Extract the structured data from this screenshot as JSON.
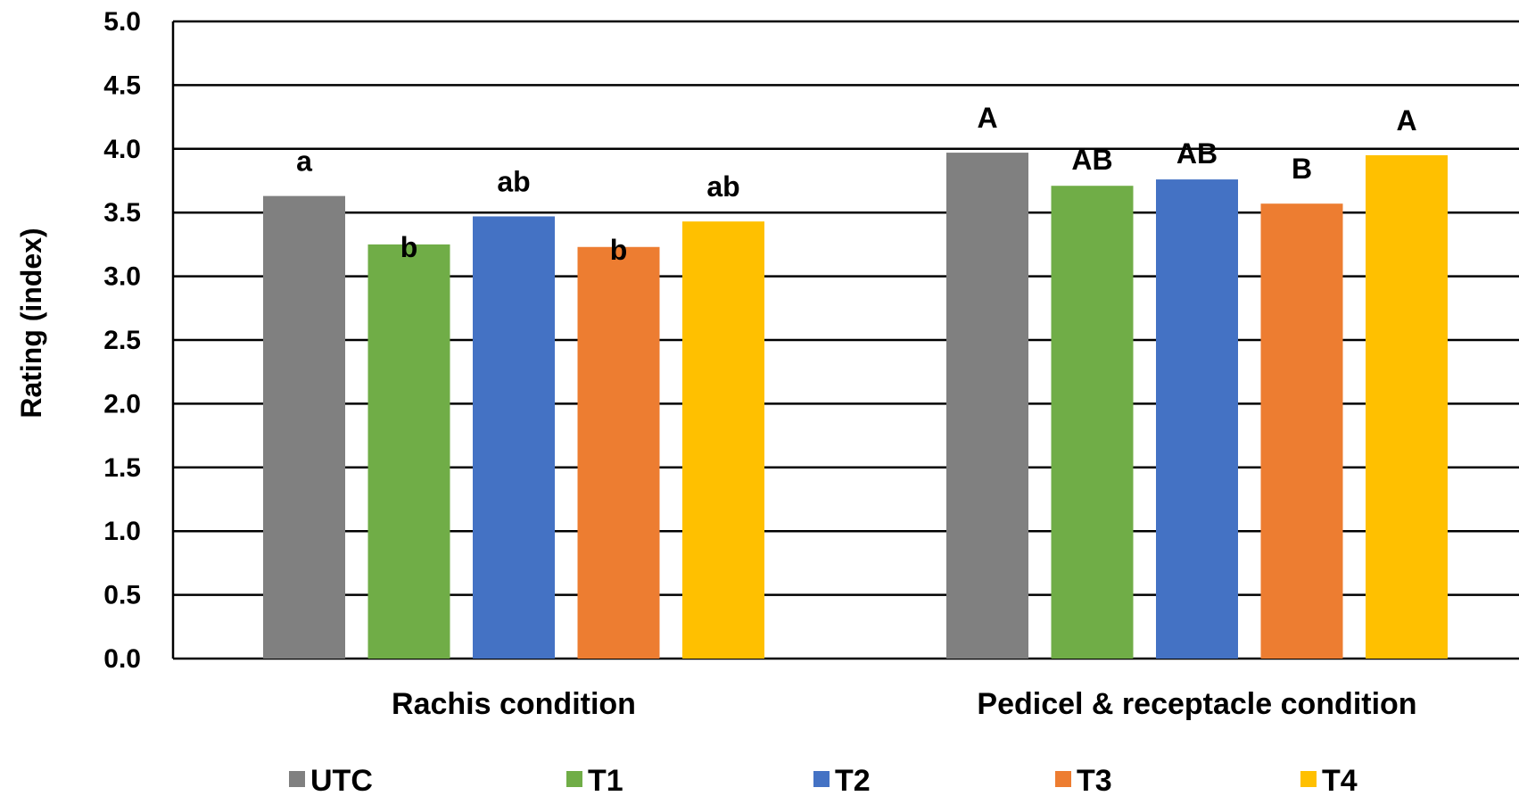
{
  "chart_data": {
    "type": "bar",
    "title": "",
    "xlabel": "",
    "ylabel": "Rating (index)",
    "ylim": [
      0,
      5
    ],
    "yticks": [
      "0.0",
      "0.5",
      "1.0",
      "1.5",
      "2.0",
      "2.5",
      "3.0",
      "3.5",
      "4.0",
      "4.5",
      "5.0"
    ],
    "grid": true,
    "legend_position": "bottom",
    "categories": [
      "Rachis condition",
      "Pedicel & receptacle condition"
    ],
    "series": [
      {
        "name": "UTC",
        "color": "#808080",
        "values": [
          3.63,
          3.97
        ],
        "labels": [
          "a",
          "A"
        ]
      },
      {
        "name": "T1",
        "color": "#70AD47",
        "values": [
          3.25,
          3.71
        ],
        "labels": [
          "b",
          "AB"
        ]
      },
      {
        "name": "T2",
        "color": "#4472C4",
        "values": [
          3.47,
          3.76
        ],
        "labels": [
          "ab",
          "AB"
        ]
      },
      {
        "name": "T3",
        "color": "#ED7D31",
        "values": [
          3.23,
          3.57
        ],
        "labels": [
          "b",
          "B"
        ]
      },
      {
        "name": "T4",
        "color": "#FFC000",
        "values": [
          3.43,
          3.95
        ],
        "labels": [
          "ab",
          "A"
        ]
      }
    ]
  }
}
